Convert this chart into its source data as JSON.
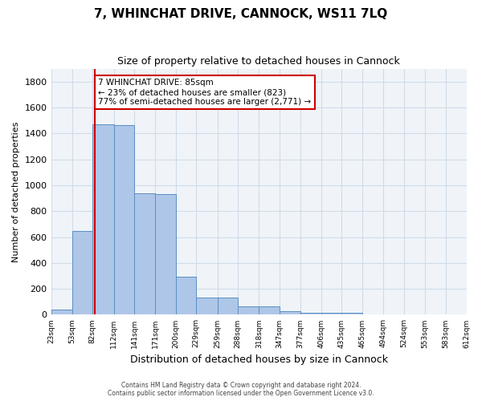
{
  "title1": "7, WHINCHAT DRIVE, CANNOCK, WS11 7LQ",
  "title2": "Size of property relative to detached houses in Cannock",
  "xlabel": "Distribution of detached houses by size in Cannock",
  "ylabel": "Number of detached properties",
  "bar_color": "#aec6e8",
  "bar_edge_color": "#5a8fc2",
  "bar_heights": [
    40,
    648,
    1470,
    1465,
    935,
    930,
    295,
    132,
    130,
    65,
    65,
    25,
    18,
    18,
    12,
    0,
    0,
    0,
    0,
    0
  ],
  "bin_edges": [
    23,
    53,
    82,
    112,
    141,
    171,
    200,
    229,
    259,
    288,
    318,
    347,
    377,
    406,
    435,
    465,
    494,
    524,
    553,
    583,
    612
  ],
  "bin_labels": [
    "23sqm",
    "53sqm",
    "82sqm",
    "112sqm",
    "141sqm",
    "171sqm",
    "200sqm",
    "229sqm",
    "259sqm",
    "288sqm",
    "318sqm",
    "347sqm",
    "377sqm",
    "406sqm",
    "435sqm",
    "465sqm",
    "494sqm",
    "524sqm",
    "553sqm",
    "583sqm",
    "612sqm"
  ],
  "property_size": 85,
  "annotation_line_color": "#cc0000",
  "annotation_box_text": "7 WHINCHAT DRIVE: 85sqm\n← 23% of detached houses are smaller (823)\n77% of semi-detached houses are larger (2,771) →",
  "annotation_box_color": "white",
  "annotation_box_edge_color": "#cc0000",
  "grid_color": "#d0dce8",
  "background_color": "#f0f4f8",
  "ylim": [
    0,
    1900
  ],
  "yticks": [
    0,
    200,
    400,
    600,
    800,
    1000,
    1200,
    1400,
    1600,
    1800
  ],
  "footer_line1": "Contains HM Land Registry data © Crown copyright and database right 2024.",
  "footer_line2": "Contains public sector information licensed under the Open Government Licence v3.0."
}
